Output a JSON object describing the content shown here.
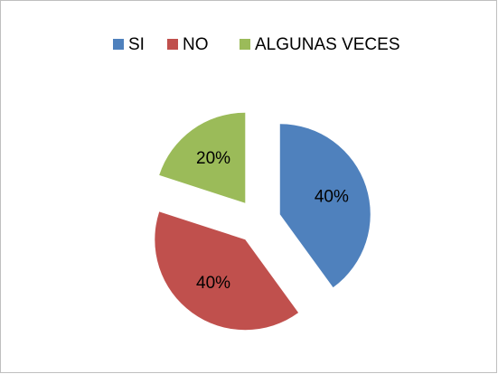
{
  "chart_data": {
    "type": "pie",
    "categories": [
      "SI",
      "NO",
      "ALGUNAS VECES"
    ],
    "values": [
      40,
      40,
      20
    ],
    "value_labels": [
      "40%",
      "40%",
      "20%"
    ],
    "colors": [
      "#4f81bd",
      "#c0504d",
      "#9bbb59"
    ],
    "legend": "top",
    "exploded": true
  }
}
